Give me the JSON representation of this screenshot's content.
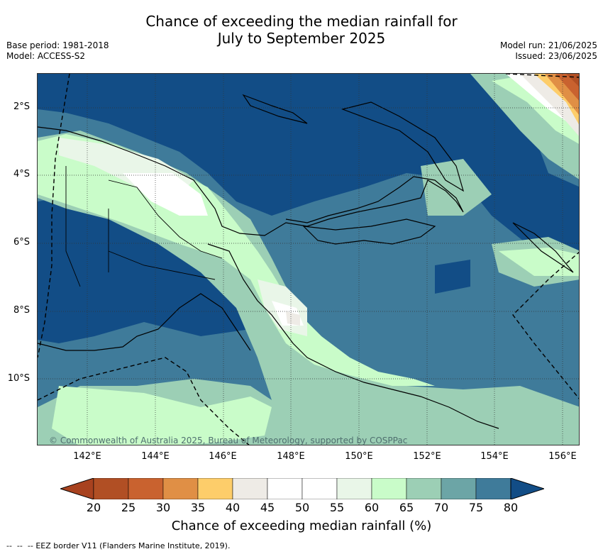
{
  "title_line1": "Chance of exceeding the median rainfall for",
  "title_line2": "July to September 2025",
  "meta_left": {
    "base_period": "Base period: 1981-2018",
    "model": "Model: ACCESS-S2"
  },
  "meta_right": {
    "model_run": "Model run: 21/06/2025",
    "issued": "Issued: 23/06/2025"
  },
  "map": {
    "lat_labels": [
      "2°S",
      "4°S",
      "6°S",
      "8°S",
      "10°S"
    ],
    "lon_labels": [
      "142°E",
      "144°E",
      "146°E",
      "148°E",
      "150°E",
      "152°E",
      "154°E",
      "156°E"
    ],
    "copyright": "© Commonwealth of Australia 2025, Bureau of Meteorology, supported by COSPPac",
    "gridlines": true
  },
  "colorbar": {
    "ticks": [
      "20",
      "25",
      "30",
      "35",
      "40",
      "45",
      "50",
      "55",
      "60",
      "65",
      "70",
      "75",
      "80"
    ],
    "colors": [
      "#a8421f",
      "#b14f24",
      "#c9622f",
      "#e08f45",
      "#fdcd6a",
      "#eeebe6",
      "#ffffff",
      "#ffffff",
      "#e9f6e8",
      "#c9fcc9",
      "#9ccfb5",
      "#6ca5a6",
      "#3f7b9a",
      "#124d86"
    ],
    "label": "Chance of exceeding median rainfall (%)"
  },
  "legend_text": "EEZ border V11 (Flanders Marine Institute, 2019)."
}
